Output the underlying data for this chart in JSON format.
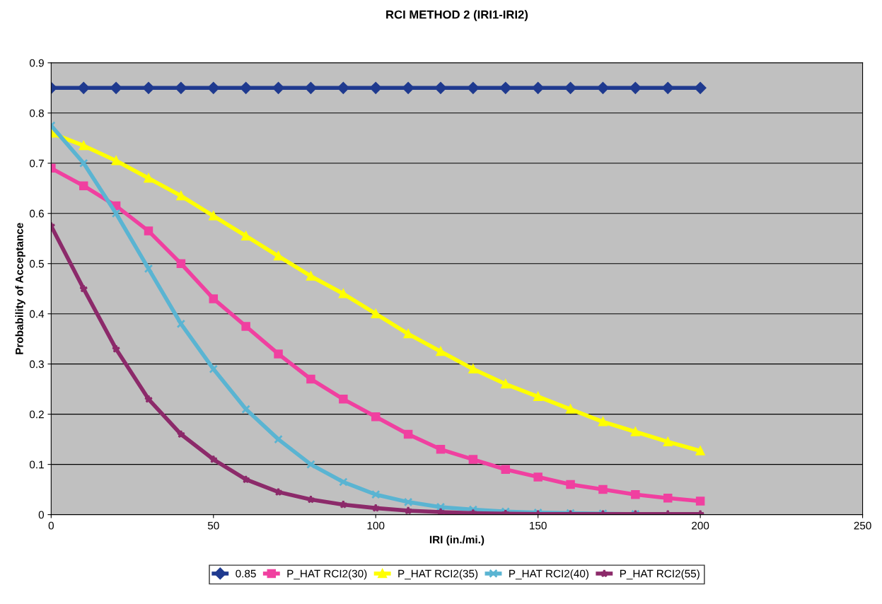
{
  "chart_data": {
    "type": "line",
    "title": "RCI METHOD 2 (IRI1-IRI2)",
    "xlabel": "IRI (in./mi.)",
    "ylabel": "Probability of Acceptance",
    "x": [
      0,
      10,
      20,
      30,
      40,
      50,
      60,
      70,
      80,
      90,
      100,
      110,
      120,
      130,
      140,
      150,
      160,
      170,
      180,
      190,
      200
    ],
    "series": [
      {
        "name": "0.85",
        "color": "#1f3a8f",
        "marker": "diamond",
        "values": [
          0.85,
          0.85,
          0.85,
          0.85,
          0.85,
          0.85,
          0.85,
          0.85,
          0.85,
          0.85,
          0.85,
          0.85,
          0.85,
          0.85,
          0.85,
          0.85,
          0.85,
          0.85,
          0.85,
          0.85,
          0.85
        ]
      },
      {
        "name": "P_HAT RCI2(30)",
        "color": "#f040a0",
        "marker": "square",
        "values": [
          0.69,
          0.655,
          0.615,
          0.565,
          0.5,
          0.43,
          0.375,
          0.32,
          0.27,
          0.23,
          0.195,
          0.16,
          0.13,
          0.11,
          0.09,
          0.075,
          0.06,
          0.05,
          0.04,
          0.033,
          0.027
        ]
      },
      {
        "name": "P_HAT RCI2(35)",
        "color": "#ffff00",
        "marker": "triangle",
        "values": [
          0.76,
          0.735,
          0.705,
          0.67,
          0.635,
          0.595,
          0.555,
          0.515,
          0.475,
          0.44,
          0.4,
          0.36,
          0.325,
          0.29,
          0.26,
          0.235,
          0.21,
          0.185,
          0.165,
          0.145,
          0.127
        ]
      },
      {
        "name": "P_HAT RCI2(40)",
        "color": "#5ab4d2",
        "marker": "cross",
        "values": [
          0.775,
          0.7,
          0.6,
          0.49,
          0.38,
          0.29,
          0.21,
          0.15,
          0.1,
          0.065,
          0.04,
          0.025,
          0.015,
          0.01,
          0.006,
          0.004,
          0.003,
          0.002,
          0.001,
          null,
          null
        ]
      },
      {
        "name": "P_HAT RCI2(55)",
        "color": "#8c2a6a",
        "marker": "star",
        "values": [
          0.575,
          0.45,
          0.33,
          0.23,
          0.16,
          0.11,
          0.07,
          0.045,
          0.03,
          0.02,
          0.013,
          0.008,
          0.005,
          0.003,
          0.002,
          0.001,
          0.001,
          0.001,
          0.001,
          0.001,
          0.001
        ]
      }
    ],
    "xlim": [
      0,
      250
    ],
    "xticks": [
      0,
      50,
      100,
      150,
      200,
      250
    ],
    "ylim": [
      0,
      0.9
    ],
    "yticks": [
      0,
      0.1,
      0.2,
      0.3,
      0.4,
      0.5,
      0.6,
      0.7,
      0.8,
      0.9
    ],
    "grid": "y",
    "legend": "bottom"
  }
}
